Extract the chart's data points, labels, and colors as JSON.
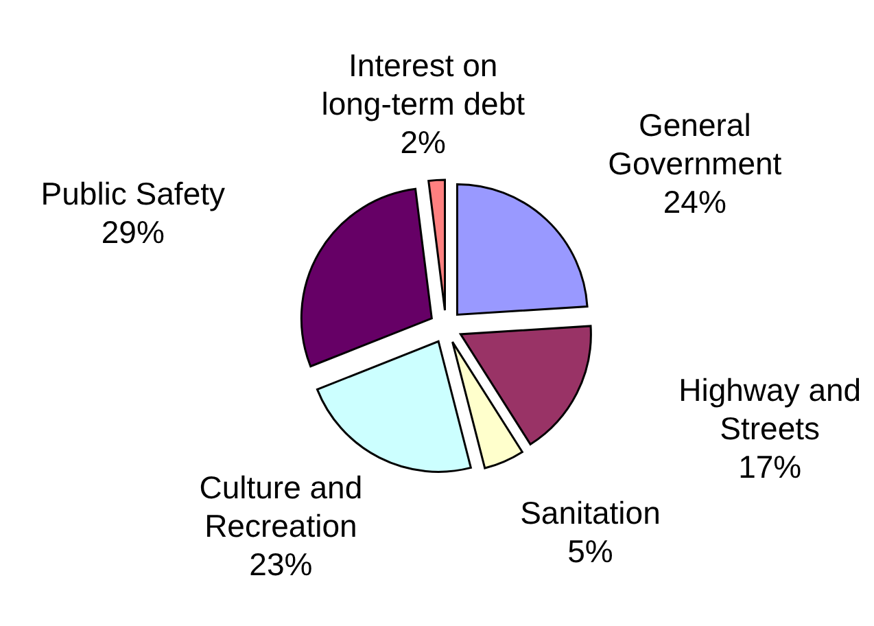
{
  "chart_data": {
    "type": "pie",
    "categories": [
      "General Government",
      "Highway and Streets",
      "Sanitation",
      "Culture and Recreation",
      "Public Safety",
      "Interest on long-term debt"
    ],
    "values": [
      24,
      17,
      5,
      23,
      29,
      2
    ],
    "colors": [
      "#9999ff",
      "#993366",
      "#ffffcc",
      "#ccffff",
      "#660066",
      "#ff8080"
    ],
    "value_labels": [
      "24%",
      "17%",
      "5%",
      "23%",
      "29%",
      "2%"
    ]
  }
}
